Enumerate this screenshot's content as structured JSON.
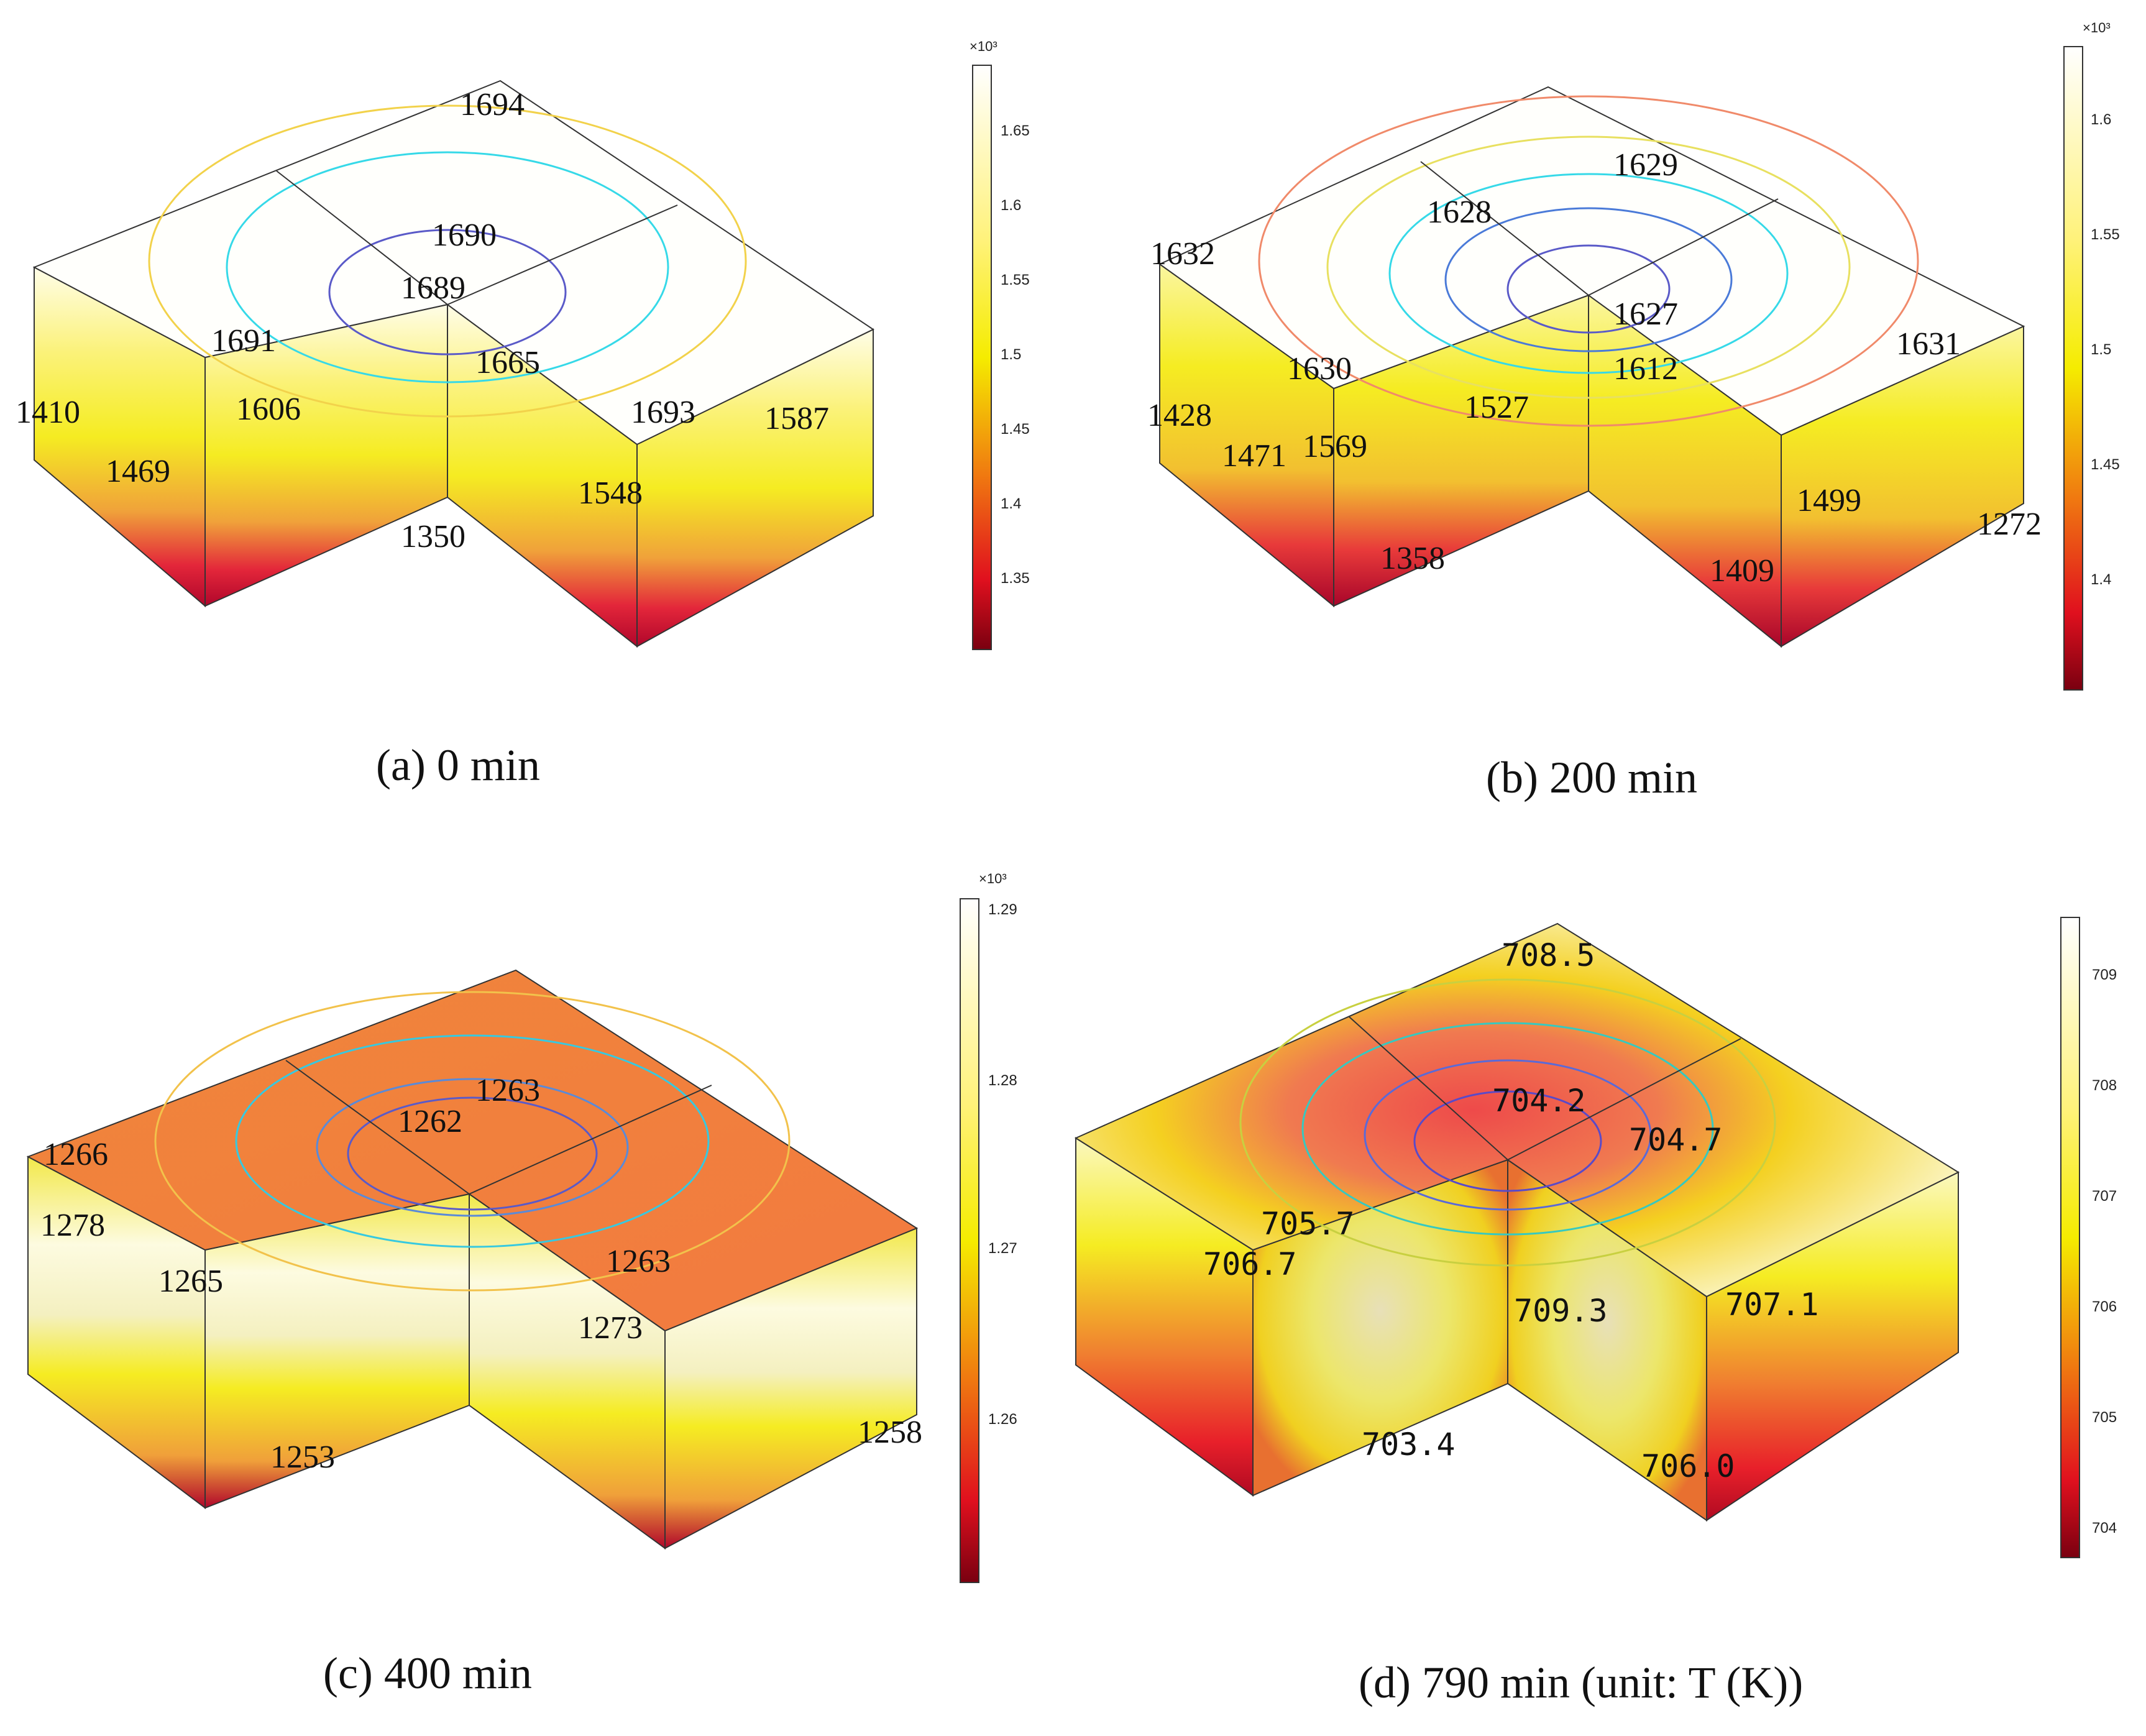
{
  "panels": [
    {
      "id": "a",
      "caption": "(a) 0 min",
      "scheme": "hot",
      "colorbar": {
        "multiplier": "×10³",
        "ticks": [
          "1.65",
          "1.6",
          "1.55",
          "1.5",
          "1.45",
          "1.4",
          "1.35"
        ]
      },
      "labels": [
        "1694",
        "1690",
        "1689",
        "1691",
        "1665",
        "1693",
        "1410",
        "1606",
        "1587",
        "1469",
        "1548",
        "1350"
      ]
    },
    {
      "id": "b",
      "caption": "(b) 200 min",
      "scheme": "hot",
      "colorbar": {
        "multiplier": "×10³",
        "ticks": [
          "1.6",
          "1.55",
          "1.5",
          "1.45",
          "1.4"
        ]
      },
      "labels": [
        "1629",
        "1628",
        "1632",
        "1627",
        "1631",
        "1630",
        "1612",
        "1428",
        "1527",
        "1471",
        "1569",
        "1499",
        "1272",
        "1358",
        "1409"
      ]
    },
    {
      "id": "c",
      "caption": "(c) 400 min",
      "scheme": "warm",
      "colorbar": {
        "multiplier": "×10³",
        "ticks": [
          "1.29",
          "1.28",
          "1.27",
          "1.26"
        ]
      },
      "labels": [
        "1263",
        "1262",
        "1266",
        "1278",
        "1263",
        "1265",
        "1273",
        "1258",
        "1253"
      ]
    },
    {
      "id": "d",
      "caption": "(d) 790 min (unit: T (K))",
      "scheme": "mixed",
      "colorbar": {
        "multiplier": "",
        "ticks": [
          "709",
          "708",
          "707",
          "706",
          "705",
          "704"
        ]
      },
      "labels": [
        "708.5",
        "704.2",
        "704.7",
        "705.7",
        "706.7",
        "709.3",
        "707.1",
        "703.4",
        "706.0"
      ]
    }
  ]
}
